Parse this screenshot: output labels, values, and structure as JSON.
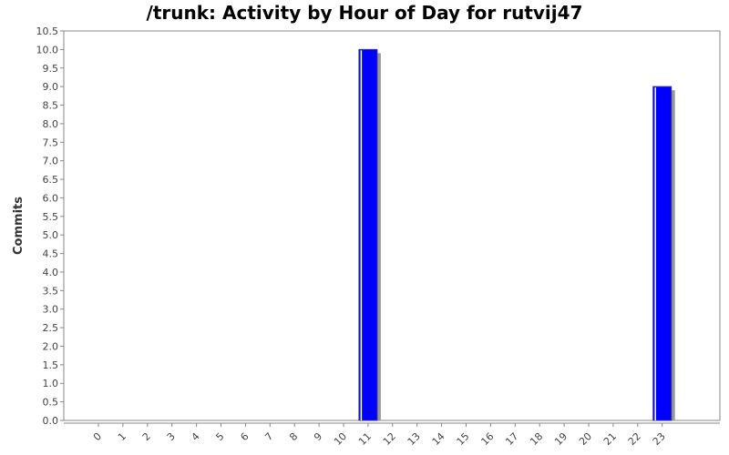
{
  "chart_data": {
    "type": "bar",
    "title": "/trunk: Activity by Hour of Day for rutvij47",
    "xlabel": "",
    "ylabel": "Commits",
    "categories": [
      "0",
      "1",
      "2",
      "3",
      "4",
      "5",
      "6",
      "7",
      "8",
      "9",
      "10",
      "11",
      "12",
      "13",
      "14",
      "15",
      "16",
      "17",
      "18",
      "19",
      "20",
      "21",
      "22",
      "23"
    ],
    "values": [
      0,
      0,
      0,
      0,
      0,
      0,
      0,
      0,
      0,
      0,
      0,
      10,
      0,
      0,
      0,
      0,
      0,
      0,
      0,
      0,
      0,
      0,
      0,
      9
    ],
    "ylim": [
      0,
      10.5
    ],
    "yticks": [
      "0.0",
      "0.5",
      "1.0",
      "1.5",
      "2.0",
      "2.5",
      "3.0",
      "3.5",
      "4.0",
      "4.5",
      "5.0",
      "5.5",
      "6.0",
      "6.5",
      "7.0",
      "7.5",
      "8.0",
      "8.5",
      "9.0",
      "9.5",
      "10.0",
      "10.5"
    ],
    "grid": false,
    "colors": {
      "bar": "#0000ff",
      "bar_shadow": "#999999",
      "bar_edge": "#333399",
      "axis": "#888888"
    }
  }
}
